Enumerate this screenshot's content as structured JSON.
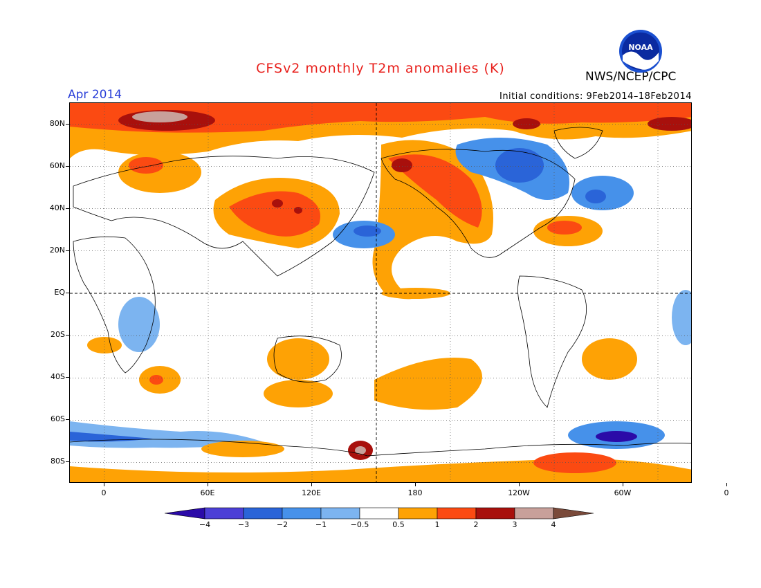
{
  "header": {
    "title": "CFSv2 monthly T2m anomalies (K)",
    "valid_date": "Apr 2014",
    "agency": "NWS/NCEP/CPC",
    "initial_conditions": "Initial conditions: 9Feb2014–18Feb2014",
    "logo_text": "NOAA"
  },
  "map": {
    "projection": "equirectangular",
    "lon_range": [
      -20,
      340
    ],
    "lat_range": [
      -90,
      90
    ],
    "lat_labels": [
      "80N",
      "60N",
      "40N",
      "20N",
      "EQ",
      "20S",
      "40S",
      "60S",
      "80S"
    ],
    "lat_values": [
      80,
      60,
      40,
      20,
      0,
      -20,
      -40,
      -60,
      -80
    ],
    "lon_labels": [
      "0",
      "60E",
      "120E",
      "180",
      "120W",
      "60W",
      "0"
    ],
    "lon_values": [
      0,
      60,
      120,
      180,
      240,
      300,
      360
    ]
  },
  "colorbar": {
    "labels": [
      "−4",
      "−3",
      "−2",
      "−1",
      "−0.5",
      "0.5",
      "1",
      "2",
      "3",
      "4"
    ],
    "colors": [
      "#2b0ba8",
      "#4c3fd6",
      "#2a64d8",
      "#4691ea",
      "#7cb4f0",
      "#ffffff",
      "#fea205",
      "#fb4a12",
      "#a8100c",
      "#c8a09a",
      "#7a4a3a"
    ]
  }
}
